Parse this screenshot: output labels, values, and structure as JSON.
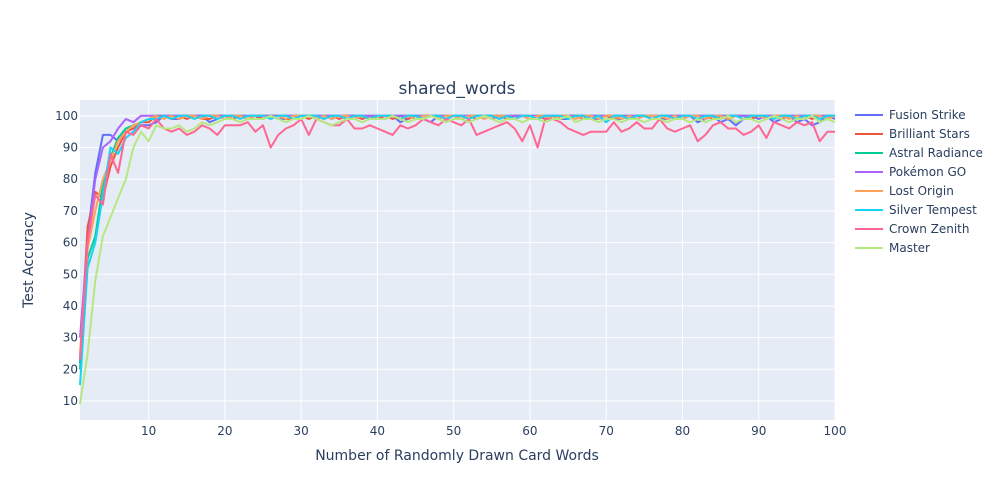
{
  "chart_data": {
    "type": "line",
    "title": "shared_words",
    "xlabel": "Number of Randomly Drawn Card Words",
    "ylabel": "Test Accuracy",
    "xlim": [
      1,
      100
    ],
    "ylim": [
      4,
      105
    ],
    "xticks": [
      10,
      20,
      30,
      40,
      50,
      60,
      70,
      80,
      90,
      100
    ],
    "yticks": [
      10,
      20,
      30,
      40,
      50,
      60,
      70,
      80,
      90,
      100
    ],
    "grid": true,
    "legend_position": "right",
    "plot_background": "#e5ecf6",
    "x": [
      1,
      2,
      3,
      4,
      5,
      6,
      7,
      8,
      9,
      10,
      11,
      12,
      13,
      14,
      15,
      16,
      17,
      18,
      19,
      20,
      21,
      22,
      23,
      24,
      25,
      26,
      27,
      28,
      29,
      30,
      31,
      32,
      33,
      34,
      35,
      36,
      37,
      38,
      39,
      40,
      41,
      42,
      43,
      44,
      45,
      46,
      47,
      48,
      49,
      50,
      51,
      52,
      53,
      54,
      55,
      56,
      57,
      58,
      59,
      60,
      61,
      62,
      63,
      64,
      65,
      66,
      67,
      68,
      69,
      70,
      71,
      72,
      73,
      74,
      75,
      76,
      77,
      78,
      79,
      80,
      81,
      82,
      83,
      84,
      85,
      86,
      87,
      88,
      89,
      90,
      91,
      92,
      93,
      94,
      95,
      96,
      97,
      98,
      99,
      100
    ],
    "series": [
      {
        "name": "Fusion Strike",
        "color": "#636efa",
        "values": [
          22,
          62,
          82,
          94,
          94,
          92,
          95,
          96,
          97,
          97,
          98,
          100,
          99,
          99,
          100,
          100,
          100,
          98,
          99,
          100,
          99,
          100,
          99,
          99,
          100,
          100,
          99,
          99,
          99,
          100,
          100,
          99,
          100,
          99,
          100,
          99,
          100,
          99,
          100,
          99,
          99,
          100,
          98,
          99,
          100,
          99,
          98,
          100,
          99,
          100,
          99,
          100,
          99,
          100,
          100,
          99,
          100,
          99,
          100,
          99,
          100,
          99,
          100,
          99,
          99,
          100,
          100,
          99,
          99,
          100,
          99,
          99,
          100,
          99,
          100,
          99,
          99,
          99,
          100,
          99,
          100,
          98,
          99,
          100,
          98,
          99,
          97,
          99,
          100,
          99,
          100,
          98,
          99,
          100,
          98,
          99,
          97,
          98,
          100,
          99
        ]
      },
      {
        "name": "Brilliant Stars",
        "color": "#ef553b",
        "values": [
          23,
          65,
          76,
          74,
          84,
          90,
          95,
          96,
          98,
          98,
          100,
          100,
          99,
          100,
          99,
          100,
          99,
          99,
          100,
          100,
          99,
          100,
          99,
          100,
          99,
          100,
          100,
          99,
          99,
          100,
          99,
          100,
          99,
          100,
          99,
          100,
          100,
          99,
          100,
          99,
          100,
          99,
          100,
          99,
          100,
          99,
          100,
          100,
          99,
          100,
          99,
          100,
          99,
          100,
          99,
          100,
          99,
          100,
          100,
          99,
          100,
          99,
          100,
          99,
          100,
          100,
          99,
          100,
          99,
          100,
          99,
          100,
          99,
          100,
          100,
          99,
          100,
          99,
          100,
          99,
          100,
          99,
          100,
          99,
          100,
          99,
          100,
          100,
          99,
          100,
          99,
          100,
          99,
          100,
          99,
          100,
          99,
          100,
          99,
          100
        ]
      },
      {
        "name": "Astral Radiance",
        "color": "#00cc96",
        "values": [
          20,
          55,
          62,
          78,
          87,
          93,
          96,
          97,
          98,
          99,
          100,
          100,
          100,
          100,
          100,
          100,
          100,
          100,
          100,
          100,
          100,
          100,
          100,
          100,
          100,
          100,
          100,
          100,
          100,
          100,
          100,
          100,
          100,
          100,
          100,
          100,
          100,
          100,
          100,
          100,
          100,
          100,
          100,
          100,
          100,
          100,
          100,
          100,
          100,
          100,
          100,
          100,
          100,
          100,
          100,
          100,
          100,
          100,
          100,
          100,
          100,
          100,
          100,
          100,
          100,
          100,
          100,
          100,
          100,
          100,
          100,
          100,
          100,
          100,
          100,
          100,
          100,
          100,
          100,
          100,
          100,
          100,
          100,
          100,
          100,
          100,
          100,
          100,
          100,
          100,
          100,
          100,
          100,
          100,
          100,
          100,
          100,
          100,
          100,
          100
        ]
      },
      {
        "name": "Pokémon GO",
        "color": "#ab63fa",
        "values": [
          30,
          60,
          80,
          90,
          92,
          96,
          99,
          98,
          100,
          100,
          100,
          100,
          100,
          100,
          100,
          100,
          100,
          100,
          100,
          100,
          100,
          100,
          100,
          100,
          100,
          100,
          100,
          100,
          100,
          100,
          100,
          100,
          100,
          100,
          100,
          100,
          100,
          100,
          100,
          100,
          100,
          100,
          100,
          100,
          100,
          100,
          100,
          100,
          100,
          100,
          100,
          100,
          100,
          100,
          100,
          100,
          100,
          100,
          100,
          100,
          100,
          100,
          100,
          100,
          100,
          100,
          100,
          100,
          100,
          100,
          100,
          100,
          100,
          100,
          100,
          100,
          100,
          100,
          100,
          100,
          100,
          100,
          100,
          100,
          100,
          100,
          100,
          100,
          100,
          100,
          100,
          100,
          100,
          100,
          100,
          100,
          100,
          100,
          100,
          100
        ]
      },
      {
        "name": "Lost Origin",
        "color": "#ffa15a",
        "values": [
          25,
          58,
          70,
          80,
          86,
          92,
          95,
          97,
          98,
          99,
          100,
          99,
          100,
          99,
          100,
          100,
          99,
          100,
          100,
          99,
          100,
          100,
          99,
          100,
          100,
          99,
          100,
          99,
          100,
          100,
          100,
          99,
          100,
          99,
          100,
          100,
          99,
          100,
          99,
          100,
          100,
          100,
          99,
          100,
          99,
          100,
          100,
          99,
          100,
          100,
          99,
          100,
          100,
          99,
          100,
          100,
          100,
          99,
          100,
          99,
          100,
          100,
          99,
          100,
          100,
          99,
          100,
          100,
          99,
          100,
          100,
          99,
          100,
          99,
          100,
          100,
          100,
          99,
          100,
          99,
          100,
          100,
          99,
          100,
          100,
          99,
          100,
          99,
          100,
          100,
          99,
          100,
          100,
          99,
          100,
          99,
          100,
          100,
          99,
          100
        ]
      },
      {
        "name": "Silver Tempest",
        "color": "#19d3f3",
        "values": [
          15,
          52,
          60,
          75,
          90,
          88,
          93,
          95,
          98,
          99,
          99,
          100,
          99,
          100,
          100,
          99,
          100,
          100,
          99,
          100,
          100,
          99,
          100,
          100,
          100,
          99,
          100,
          100,
          99,
          100,
          100,
          100,
          99,
          100,
          100,
          99,
          100,
          100,
          99,
          100,
          100,
          100,
          99,
          100,
          100,
          99,
          100,
          100,
          99,
          100,
          100,
          99,
          100,
          100,
          100,
          99,
          100,
          99,
          100,
          100,
          99,
          100,
          100,
          100,
          99,
          100,
          100,
          99,
          100,
          98,
          100,
          100,
          99,
          100,
          100,
          99,
          100,
          100,
          99,
          100,
          100,
          99,
          100,
          100,
          99,
          100,
          100,
          99,
          100,
          100,
          100,
          99,
          100,
          100,
          99,
          100,
          100,
          99,
          100,
          100
        ]
      },
      {
        "name": "Crown Zenith",
        "color": "#ff6692",
        "values": [
          23,
          60,
          75,
          72,
          88,
          82,
          95,
          94,
          97,
          96,
          99,
          96,
          95,
          96,
          94,
          95,
          97,
          96,
          94,
          97,
          97,
          97,
          98,
          95,
          97,
          90,
          94,
          96,
          97,
          99,
          94,
          99,
          98,
          97,
          97,
          99,
          96,
          96,
          97,
          96,
          95,
          94,
          97,
          96,
          97,
          99,
          98,
          97,
          99,
          98,
          97,
          99,
          94,
          95,
          96,
          97,
          98,
          96,
          92,
          97,
          90,
          99,
          99,
          98,
          96,
          95,
          94,
          95,
          95,
          95,
          98,
          95,
          96,
          98,
          96,
          96,
          99,
          96,
          95,
          96,
          97,
          92,
          94,
          97,
          98,
          96,
          96,
          94,
          95,
          97,
          93,
          98,
          97,
          96,
          98,
          97,
          98,
          92,
          95,
          95
        ]
      },
      {
        "name": "Master",
        "color": "#b6e880",
        "values": [
          9,
          25,
          48,
          62,
          68,
          74,
          80,
          90,
          95,
          92,
          97,
          96,
          96,
          97,
          95,
          96,
          98,
          97,
          98,
          99,
          99,
          98,
          99,
          99,
          99,
          100,
          99,
          98,
          99,
          99,
          100,
          99,
          98,
          97,
          98,
          99,
          99,
          98,
          99,
          99,
          99,
          100,
          99,
          98,
          99,
          99,
          100,
          99,
          98,
          99,
          99,
          98,
          99,
          100,
          99,
          98,
          99,
          99,
          98,
          99,
          99,
          98,
          99,
          99,
          100,
          98,
          99,
          99,
          98,
          99,
          99,
          98,
          99,
          99,
          98,
          99,
          99,
          98,
          99,
          99,
          98,
          99,
          98,
          99,
          99,
          100,
          98,
          99,
          99,
          98,
          99,
          100,
          99,
          98,
          99,
          99,
          100,
          98,
          99,
          98
        ]
      }
    ]
  }
}
